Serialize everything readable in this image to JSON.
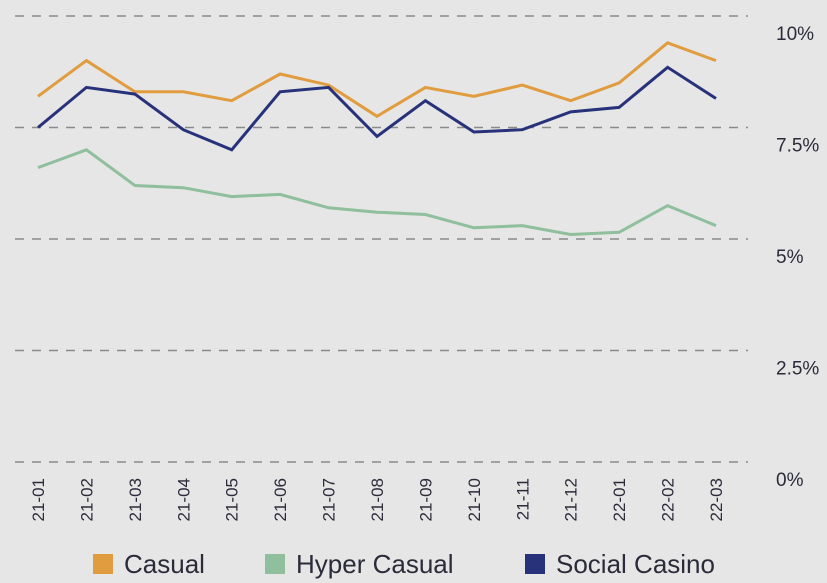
{
  "chart_data": {
    "type": "line",
    "categories": [
      "21-01",
      "21-02",
      "21-03",
      "21-04",
      "21-05",
      "21-06",
      "21-07",
      "21-08",
      "21-09",
      "21-10",
      "21-11",
      "21-12",
      "22-01",
      "22-02",
      "22-03"
    ],
    "y_ticks": [
      "0%",
      "2.5%",
      "5%",
      "7.5%",
      "10%"
    ],
    "ylim": [
      0,
      10
    ],
    "grid": "horizontal dashed",
    "legend": "bottom",
    "series": [
      {
        "name": "Casual",
        "color": "#e09c3e",
        "values": [
          8.2,
          9.0,
          8.3,
          8.3,
          8.1,
          8.7,
          8.45,
          7.75,
          8.4,
          8.2,
          8.45,
          8.1,
          8.5,
          9.4,
          9.0
        ]
      },
      {
        "name": "Hyper Casual",
        "color": "#8fbf9c",
        "values": [
          6.6,
          7.0,
          6.2,
          6.15,
          5.95,
          6.0,
          5.7,
          5.6,
          5.55,
          5.25,
          5.3,
          5.1,
          5.15,
          5.75,
          5.3
        ]
      },
      {
        "name": "Social Casino",
        "color": "#27327a",
        "values": [
          7.5,
          8.4,
          8.25,
          7.45,
          7.0,
          8.3,
          8.4,
          7.3,
          8.1,
          7.4,
          7.45,
          7.85,
          7.95,
          8.85,
          8.15
        ]
      }
    ]
  }
}
